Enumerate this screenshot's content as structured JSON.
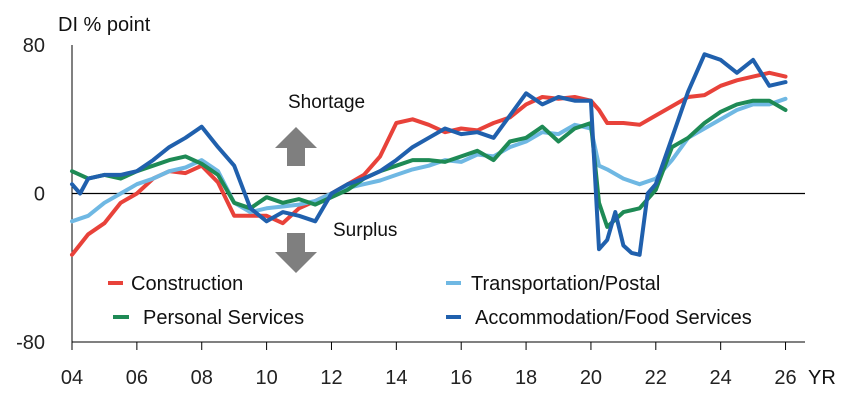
{
  "chart_data": {
    "type": "line",
    "title": "",
    "ylabel": "DI % point",
    "xlabel": "YR",
    "ylim": [
      -80,
      80
    ],
    "xlim": [
      2004,
      2026.6
    ],
    "y_ticks": [
      "80",
      "0",
      "-80"
    ],
    "y_tick_values": [
      80,
      0,
      -80
    ],
    "x_ticks": [
      "04",
      "06",
      "08",
      "10",
      "12",
      "14",
      "16",
      "18",
      "20",
      "22",
      "24",
      "26"
    ],
    "x_tick_values": [
      2004,
      2006,
      2008,
      2010,
      2012,
      2014,
      2016,
      2018,
      2020,
      2022,
      2024,
      2026
    ],
    "annotations": {
      "shortage": "Shortage",
      "surplus": "Surplus"
    },
    "grid": false,
    "legend_position": "bottom",
    "series": [
      {
        "name": "Construction",
        "color": "#e8423a",
        "x": [
          2004.0,
          2004.5,
          2005.0,
          2005.5,
          2006.0,
          2006.5,
          2007.0,
          2007.5,
          2008.0,
          2008.5,
          2009.0,
          2009.5,
          2010.0,
          2010.5,
          2011.0,
          2011.5,
          2012.0,
          2012.5,
          2013.0,
          2013.5,
          2014.0,
          2014.5,
          2015.0,
          2015.5,
          2016.0,
          2016.5,
          2017.0,
          2017.5,
          2018.0,
          2018.5,
          2019.0,
          2019.5,
          2020.0,
          2020.25,
          2020.5,
          2021.0,
          2021.5,
          2022.0,
          2022.5,
          2023.0,
          2023.5,
          2024.0,
          2024.5,
          2025.0,
          2025.5,
          2026.0
        ],
        "values": [
          -33,
          -22,
          -16,
          -5,
          0,
          8,
          12,
          11,
          15,
          6,
          -12,
          -12,
          -12,
          -16,
          -8,
          -4,
          0,
          5,
          10,
          20,
          38,
          40,
          37,
          33,
          35,
          34,
          38,
          41,
          48,
          52,
          51,
          52,
          50,
          45,
          38,
          38,
          37,
          42,
          47,
          52,
          53,
          58,
          61,
          63,
          65,
          63
        ]
      },
      {
        "name": "Transportation/Postal",
        "color": "#6fb8e3",
        "x": [
          2004.0,
          2004.5,
          2005.0,
          2005.5,
          2006.0,
          2006.5,
          2007.0,
          2007.5,
          2008.0,
          2008.5,
          2009.0,
          2009.5,
          2010.0,
          2010.5,
          2011.0,
          2011.5,
          2012.0,
          2012.5,
          2013.0,
          2013.5,
          2014.0,
          2014.5,
          2015.0,
          2015.5,
          2016.0,
          2016.5,
          2017.0,
          2017.5,
          2018.0,
          2018.5,
          2019.0,
          2019.5,
          2020.0,
          2020.25,
          2020.5,
          2021.0,
          2021.5,
          2022.0,
          2022.5,
          2023.0,
          2023.5,
          2024.0,
          2024.5,
          2025.0,
          2025.5,
          2026.0
        ],
        "values": [
          -15,
          -12,
          -5,
          0,
          5,
          8,
          12,
          14,
          18,
          12,
          -5,
          -10,
          -8,
          -7,
          -6,
          -4,
          0,
          3,
          5,
          7,
          10,
          13,
          15,
          18,
          17,
          21,
          20,
          25,
          28,
          33,
          32,
          37,
          35,
          15,
          13,
          8,
          5,
          8,
          18,
          30,
          35,
          40,
          45,
          48,
          48,
          51
        ]
      },
      {
        "name": "Personal Services",
        "color": "#1e8a55",
        "x": [
          2004.0,
          2004.5,
          2005.0,
          2005.5,
          2006.0,
          2006.5,
          2007.0,
          2007.5,
          2008.0,
          2008.5,
          2009.0,
          2009.5,
          2010.0,
          2010.5,
          2011.0,
          2011.5,
          2012.0,
          2012.5,
          2013.0,
          2013.5,
          2014.0,
          2014.5,
          2015.0,
          2015.5,
          2016.0,
          2016.5,
          2017.0,
          2017.5,
          2018.0,
          2018.5,
          2019.0,
          2019.5,
          2020.0,
          2020.25,
          2020.5,
          2021.0,
          2021.5,
          2022.0,
          2022.5,
          2023.0,
          2023.5,
          2024.0,
          2024.5,
          2025.0,
          2025.5,
          2026.0
        ],
        "values": [
          12,
          8,
          10,
          8,
          12,
          15,
          18,
          20,
          16,
          10,
          -5,
          -8,
          -2,
          -5,
          -3,
          -6,
          -2,
          2,
          8,
          12,
          15,
          18,
          18,
          17,
          20,
          23,
          18,
          28,
          30,
          36,
          28,
          35,
          38,
          -5,
          -18,
          -10,
          -8,
          2,
          25,
          30,
          38,
          44,
          48,
          50,
          50,
          45
        ]
      },
      {
        "name": "Accommodation/Food Services",
        "color": "#2060ad",
        "x": [
          2004.0,
          2004.25,
          2004.5,
          2005.0,
          2005.5,
          2006.0,
          2006.5,
          2007.0,
          2007.5,
          2008.0,
          2008.5,
          2009.0,
          2009.5,
          2010.0,
          2010.5,
          2011.0,
          2011.5,
          2012.0,
          2012.5,
          2013.0,
          2013.5,
          2014.0,
          2014.5,
          2015.0,
          2015.5,
          2016.0,
          2016.5,
          2017.0,
          2017.5,
          2018.0,
          2018.5,
          2019.0,
          2019.5,
          2020.0,
          2020.25,
          2020.5,
          2020.75,
          2021.0,
          2021.25,
          2021.5,
          2021.75,
          2022.0,
          2022.5,
          2023.0,
          2023.5,
          2024.0,
          2024.5,
          2025.0,
          2025.5,
          2026.0
        ],
        "values": [
          5,
          0,
          8,
          10,
          10,
          12,
          18,
          25,
          30,
          36,
          25,
          15,
          -8,
          -15,
          -10,
          -12,
          -15,
          0,
          5,
          8,
          12,
          18,
          25,
          30,
          35,
          32,
          33,
          30,
          42,
          54,
          48,
          52,
          50,
          50,
          -30,
          -25,
          -10,
          -28,
          -32,
          -33,
          0,
          5,
          30,
          55,
          75,
          72,
          65,
          72,
          58,
          60
        ]
      }
    ]
  }
}
